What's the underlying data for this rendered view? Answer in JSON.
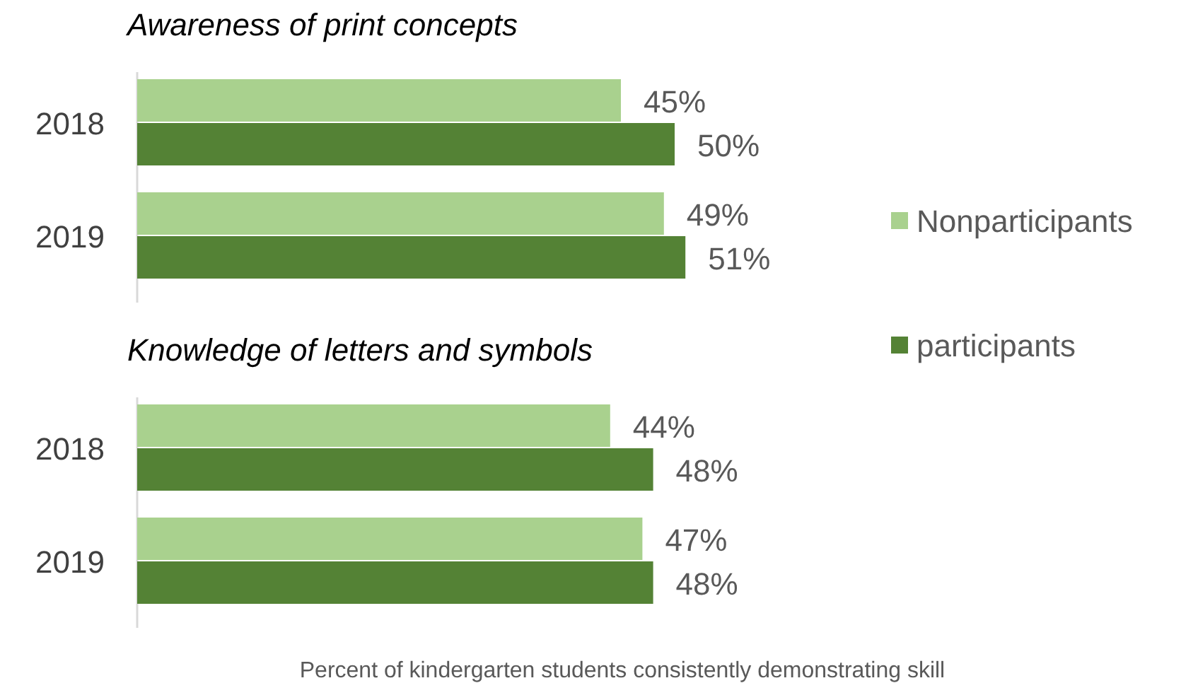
{
  "chart_data": [
    {
      "type": "bar",
      "orientation": "horizontal",
      "title": "Awareness of print concepts",
      "categories": [
        "2018",
        "2019"
      ],
      "legend": "right",
      "series": [
        {
          "name": "Nonparticipants",
          "color": "#a9d18e",
          "values": [
            45,
            49
          ],
          "value_labels": [
            "45%",
            "49%"
          ]
        },
        {
          "name": "participants",
          "color": "#548235",
          "values": [
            50,
            51
          ],
          "value_labels": [
            "50%",
            "51%"
          ]
        }
      ]
    },
    {
      "type": "bar",
      "orientation": "horizontal",
      "title": "Knowledge of letters and symbols",
      "categories": [
        "2018",
        "2019"
      ],
      "xlabel": "Percent of kindergarten students consistently demonstrating skill",
      "series": [
        {
          "color": "#a9d18e",
          "values": [
            44,
            47
          ],
          "value_labels": [
            "44%",
            "47%"
          ]
        },
        {
          "color": "#548235",
          "values": [
            48,
            48
          ],
          "value_labels": [
            "48%",
            "48%"
          ]
        }
      ]
    }
  ]
}
